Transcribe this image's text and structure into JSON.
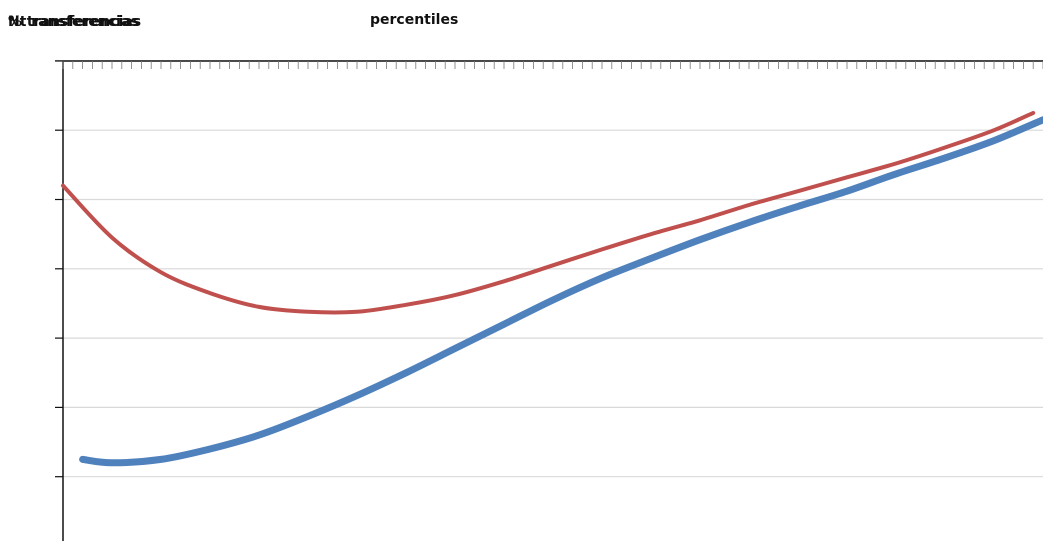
{
  "chart_data": {
    "type": "line",
    "title_overlap_1": "% transferencias",
    "title_overlap_2": "Nt ransferencias",
    "xlabel": "percentiles",
    "ylabel": "",
    "grid": true,
    "x_tick_count": 100,
    "y_ticks": [
      1,
      2,
      3,
      4,
      5,
      6,
      7
    ],
    "ylim": [
      0,
      7
    ],
    "xlim": [
      0,
      100
    ],
    "series": [
      {
        "color": "#c0504d",
        "values": [
          [
            0,
            5.2
          ],
          [
            5,
            4.45
          ],
          [
            10,
            3.95
          ],
          [
            15,
            3.65
          ],
          [
            20,
            3.45
          ],
          [
            25,
            3.38
          ],
          [
            30,
            3.38
          ],
          [
            35,
            3.48
          ],
          [
            40,
            3.62
          ],
          [
            45,
            3.82
          ],
          [
            50,
            4.05
          ],
          [
            55,
            4.28
          ],
          [
            60,
            4.5
          ],
          [
            65,
            4.7
          ],
          [
            70,
            4.92
          ],
          [
            75,
            5.12
          ],
          [
            80,
            5.32
          ],
          [
            85,
            5.52
          ],
          [
            90,
            5.75
          ],
          [
            95,
            6.0
          ],
          [
            99,
            6.25
          ]
        ]
      },
      {
        "color": "#4f81bd",
        "values": [
          [
            2,
            1.25
          ],
          [
            5,
            1.2
          ],
          [
            10,
            1.25
          ],
          [
            15,
            1.4
          ],
          [
            20,
            1.6
          ],
          [
            25,
            1.87
          ],
          [
            30,
            2.17
          ],
          [
            35,
            2.5
          ],
          [
            40,
            2.85
          ],
          [
            45,
            3.2
          ],
          [
            50,
            3.55
          ],
          [
            55,
            3.87
          ],
          [
            60,
            4.15
          ],
          [
            65,
            4.42
          ],
          [
            70,
            4.67
          ],
          [
            75,
            4.9
          ],
          [
            80,
            5.12
          ],
          [
            85,
            5.37
          ],
          [
            90,
            5.6
          ],
          [
            95,
            5.85
          ],
          [
            100,
            6.15
          ]
        ]
      }
    ]
  }
}
